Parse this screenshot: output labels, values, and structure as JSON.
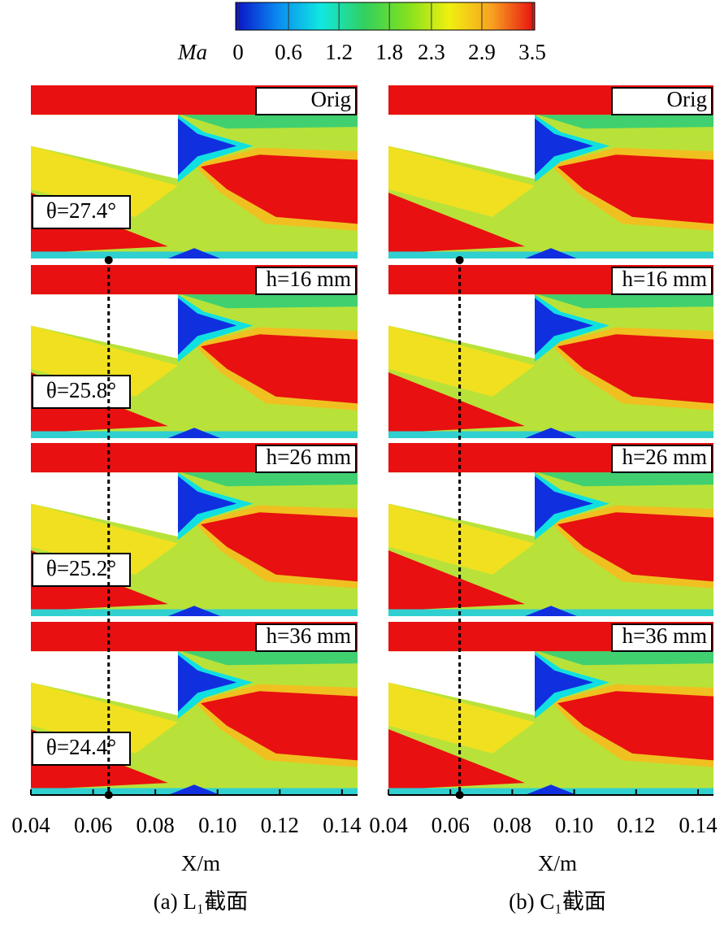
{
  "colorbar": {
    "label": "Ma",
    "lim": [
      0,
      3.5
    ],
    "ticks": [
      0,
      0.6,
      1.2,
      1.8,
      2.3,
      2.9,
      3.5
    ],
    "colors": [
      "#0a10c8",
      "#0a8cf0",
      "#10e8e0",
      "#30d060",
      "#80e020",
      "#f0f010",
      "#f8a020",
      "#e81010"
    ]
  },
  "panels": [
    {
      "caption": "(a) L₁截面",
      "x_axis_label": "X/m",
      "xlim": [
        0.04,
        0.145
      ],
      "xticks": [
        0.04,
        0.06,
        0.08,
        {
          "value": 0.1,
          "label": "0.10"
        },
        0.12,
        0.14
      ],
      "marker_x": 0.065,
      "rows": [
        {
          "tag": "Orig",
          "angle": "θ=27.4°"
        },
        {
          "tag": "h=16 mm",
          "angle": "θ=25.8°"
        },
        {
          "tag": "h=26 mm",
          "angle": "θ=25.2°"
        },
        {
          "tag": "h=36 mm",
          "angle": "θ=24.4°"
        }
      ]
    },
    {
      "caption": "(b) C₁截面",
      "x_axis_label": "X/m",
      "xlim": [
        0.04,
        0.145
      ],
      "xticks": [
        0.04,
        0.06,
        0.08,
        {
          "value": 0.1,
          "label": "0.10"
        },
        0.12,
        0.14
      ],
      "marker_x": 0.063,
      "rows": [
        {
          "tag": "Orig"
        },
        {
          "tag": "h=16 mm"
        },
        {
          "tag": "h=26 mm"
        },
        {
          "tag": "h=36 mm"
        }
      ]
    }
  ]
}
